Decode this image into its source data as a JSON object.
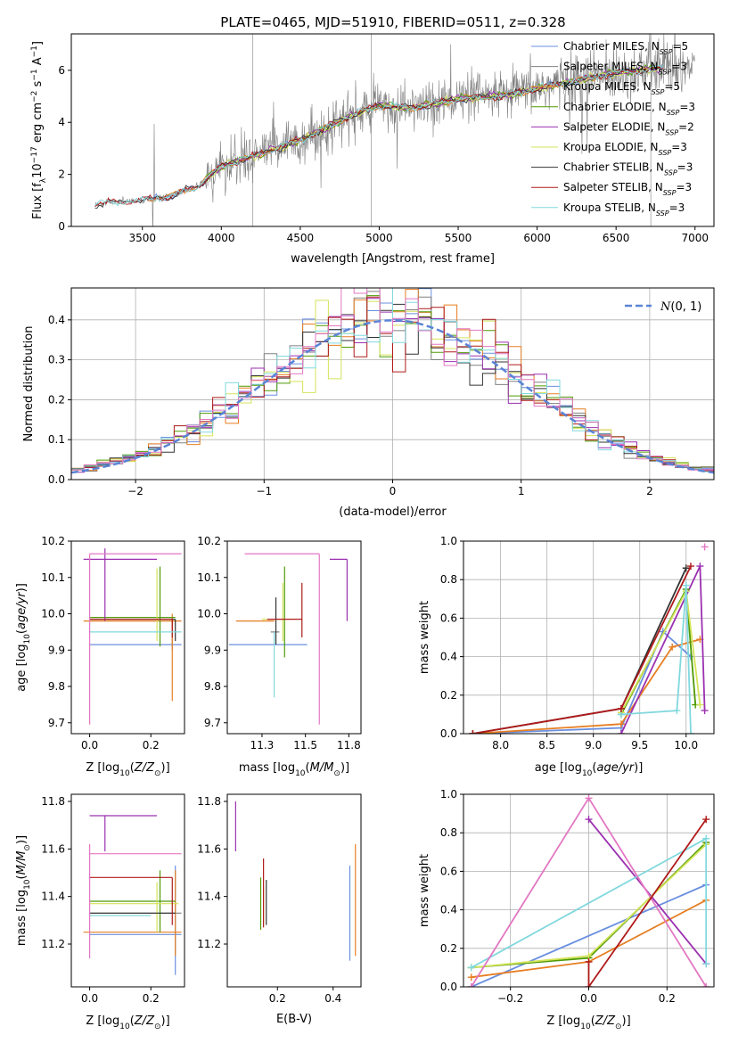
{
  "figure_title": "PLATE=0465, MJD=51910, FIBERID=0511, z=0.328",
  "colors": {
    "Chabrier MILES": "#6a8fe0",
    "Salpeter MILES": "#808080",
    "Kroupa MILES": "#e67e22",
    "Chabrier ELODIE": "#4e9a06",
    "Salpeter ELODIE": "#9b30b0",
    "Kroupa ELODIE": "#d4e35a",
    "Chabrier STELIB": "#333333",
    "Salpeter STELIB": "#b01a1a",
    "Kroupa STELIB": "#80d8de",
    "extra": "#e377c2"
  },
  "chart_data": [
    {
      "id": "spectrum",
      "type": "line",
      "xlabel": "wavelength [Angstrom, rest frame]",
      "ylabel": "Flux [f$_\\lambda$10$^{-17}$ erg cm$^{-2}$ s$^{-1}$ A$^{-1}$]",
      "xlim": [
        3050,
        7120
      ],
      "ylim": [
        0,
        7.4
      ],
      "xticks": [
        3500,
        4000,
        4500,
        5000,
        5500,
        6000,
        6500,
        7000
      ],
      "yticks": [
        0,
        2,
        4,
        6
      ],
      "legend_position": "upper-right",
      "legend": [
        {
          "name": "Chabrier MILES, N_SSP=5",
          "base": "Chabrier MILES, N",
          "sub": "SSP",
          "tail": "=5",
          "color_key": "Chabrier MILES"
        },
        {
          "name": "Salpeter MILES, N_SSP=3",
          "base": "Salpeter MILES, N",
          "sub": "SSP",
          "tail": "=3",
          "color_key": "Salpeter MILES"
        },
        {
          "name": "Kroupa MILES, N_SSP=5",
          "base": "Kroupa MILES, N",
          "sub": "SSP",
          "tail": "=5",
          "color_key": "Kroupa MILES"
        },
        {
          "name": "Chabrier ELODIE, N_SSP=3",
          "base": "Chabrier ELODIE, N",
          "sub": "SSP",
          "tail": "=3",
          "color_key": "Chabrier ELODIE"
        },
        {
          "name": "Salpeter ELODIE, N_SSP=2",
          "base": "Salpeter ELODIE, N",
          "sub": "SSP",
          "tail": "=2",
          "color_key": "Salpeter ELODIE"
        },
        {
          "name": "Kroupa ELODIE, N_SSP=3",
          "base": "Kroupa ELODIE, N",
          "sub": "SSP",
          "tail": "=3",
          "color_key": "Kroupa ELODIE"
        },
        {
          "name": "Chabrier STELIB, N_SSP=3",
          "base": "Chabrier STELIB, N",
          "sub": "SSP",
          "tail": "=3",
          "color_key": "Chabrier STELIB"
        },
        {
          "name": "Salpeter STELIB, N_SSP=3",
          "base": "Salpeter STELIB, N",
          "sub": "SSP",
          "tail": "=3",
          "color_key": "Salpeter STELIB"
        },
        {
          "name": "Kroupa STELIB, N_SSP=3",
          "base": "Kroupa STELIB, N",
          "sub": "SSP",
          "tail": "=3",
          "color_key": "Kroupa STELIB"
        }
      ],
      "continuum_points": [
        [
          3200,
          0.82
        ],
        [
          3300,
          0.95
        ],
        [
          3500,
          1.0
        ],
        [
          3700,
          1.2
        ],
        [
          3850,
          1.55
        ],
        [
          4000,
          2.3
        ],
        [
          4200,
          2.7
        ],
        [
          4400,
          3.1
        ],
        [
          4600,
          3.6
        ],
        [
          4800,
          4.2
        ],
        [
          5000,
          4.65
        ],
        [
          5200,
          4.55
        ],
        [
          5500,
          4.9
        ],
        [
          5800,
          5.05
        ],
        [
          6000,
          5.3
        ],
        [
          6200,
          5.55
        ],
        [
          6500,
          5.9
        ],
        [
          6800,
          6.1
        ],
        [
          7000,
          6.2
        ]
      ]
    },
    {
      "id": "residuals",
      "type": "histogram",
      "xlabel": "(data-model)/error",
      "ylabel": "Normed distribution",
      "xlim": [
        -2.5,
        2.5
      ],
      "ylim": [
        0,
        0.48
      ],
      "xticks": [
        -2,
        -1,
        0,
        1,
        2
      ],
      "yticks": [
        0.0,
        0.1,
        0.2,
        0.3,
        0.4
      ],
      "grid": true,
      "legend_position": "upper-right",
      "legend_label": "N(0,1)",
      "bin_width": 0.1,
      "bins_x_start": -2.5,
      "bins_count": 50
    },
    {
      "id": "age_vs_Z",
      "type": "errorbar",
      "xlabel": "Z [log10(Z/Z⊙)]",
      "ylabel": "age [log10(age/yr)]",
      "xlim": [
        -0.06,
        0.31
      ],
      "ylim": [
        9.67,
        10.2
      ],
      "xticks": [
        0.0,
        0.2
      ],
      "yticks": [
        9.7,
        9.8,
        9.9,
        10.0,
        10.1,
        10.2
      ],
      "points": [
        {
          "key": "Chabrier MILES",
          "x": 0.2,
          "xerr_lo": 0.2,
          "xerr_hi": 0.1,
          "y": 9.915,
          "yerr_lo": 0.0,
          "yerr_hi": 0.0
        },
        {
          "key": "Salpeter MILES",
          "x": 0.27,
          "xerr_lo": 0.27,
          "xerr_hi": 0.0,
          "y": 9.99,
          "yerr_lo": 0.09,
          "yerr_hi": 0.0
        },
        {
          "key": "Kroupa MILES",
          "x": 0.27,
          "xerr_lo": 0.29,
          "xerr_hi": 0.03,
          "y": 9.98,
          "yerr_lo": 0.22,
          "yerr_hi": 0.02
        },
        {
          "key": "Chabrier ELODIE",
          "x": 0.23,
          "xerr_lo": 0.23,
          "xerr_hi": 0.05,
          "y": 9.99,
          "yerr_lo": 0.08,
          "yerr_hi": 0.14
        },
        {
          "key": "Salpeter ELODIE",
          "x": 0.05,
          "xerr_lo": 0.07,
          "xerr_hi": 0.17,
          "y": 10.15,
          "yerr_lo": 0.17,
          "yerr_hi": 0.03
        },
        {
          "key": "Kroupa ELODIE",
          "x": 0.22,
          "xerr_lo": 0.22,
          "xerr_hi": 0.06,
          "y": 9.985,
          "yerr_lo": 0.06,
          "yerr_hi": 0.14
        },
        {
          "key": "Chabrier STELIB",
          "x": 0.28,
          "xerr_lo": 0.28,
          "xerr_hi": 0.0,
          "y": 9.985,
          "yerr_lo": 0.06,
          "yerr_hi": 0.0
        },
        {
          "key": "Salpeter STELIB",
          "x": 0.27,
          "xerr_lo": 0.27,
          "xerr_hi": 0.0,
          "y": 9.985,
          "yerr_lo": 0.05,
          "yerr_hi": 0.0
        },
        {
          "key": "Kroupa STELIB",
          "x": 0.13,
          "xerr_lo": 0.13,
          "xerr_hi": 0.17,
          "y": 9.95,
          "yerr_lo": 0.0,
          "yerr_hi": 0.0
        },
        {
          "key": "extra",
          "x": 0.0,
          "xerr_lo": 0.0,
          "xerr_hi": 0.3,
          "y": 10.165,
          "yerr_lo": 0.47,
          "yerr_hi": 0.0
        }
      ]
    },
    {
      "id": "age_vs_mass",
      "type": "errorbar",
      "xlabel": "mass [log10(M/M⊙)]",
      "xlim": [
        11.05,
        11.82
      ],
      "ylim": [
        9.67,
        10.2
      ],
      "xticks": [
        11.25,
        11.5,
        11.75
      ],
      "yticks": [
        9.7,
        9.8,
        9.9,
        10.0,
        10.1,
        10.2
      ],
      "points": [
        {
          "key": "Chabrier MILES",
          "x": 11.24,
          "xerr_lo": 0.18,
          "xerr_hi": 0.27,
          "y": 9.915,
          "yerr_lo": 0.0,
          "yerr_hi": 0.0
        },
        {
          "key": "Salpeter MILES",
          "x": 11.33,
          "xerr_lo": 0.03,
          "xerr_hi": 0.02,
          "y": 9.95,
          "yerr_lo": 0.0,
          "yerr_hi": 0.0
        },
        {
          "key": "Kroupa MILES",
          "x": 11.25,
          "xerr_lo": 0.15,
          "xerr_hi": 0.07,
          "y": 9.98,
          "yerr_lo": 0.0,
          "yerr_hi": 0.0
        },
        {
          "key": "Chabrier ELODIE",
          "x": 11.38,
          "xerr_lo": 0.0,
          "xerr_hi": 0.0,
          "y": 9.99,
          "yerr_lo": 0.11,
          "yerr_hi": 0.14
        },
        {
          "key": "Salpeter ELODIE",
          "x": 11.74,
          "xerr_lo": 0.1,
          "xerr_hi": 0.0,
          "y": 10.15,
          "yerr_lo": 0.17,
          "yerr_hi": 0.0
        },
        {
          "key": "Kroupa ELODIE",
          "x": 11.37,
          "xerr_lo": 0.12,
          "xerr_hi": 0.04,
          "y": 9.985,
          "yerr_lo": 0.06,
          "yerr_hi": 0.1
        },
        {
          "key": "Chabrier STELIB",
          "x": 11.33,
          "xerr_lo": 0.0,
          "xerr_hi": 0.0,
          "y": 9.985,
          "yerr_lo": 0.07,
          "yerr_hi": 0.06
        },
        {
          "key": "Salpeter STELIB",
          "x": 11.48,
          "xerr_lo": 0.2,
          "xerr_hi": 0.0,
          "y": 9.985,
          "yerr_lo": 0.05,
          "yerr_hi": 0.1
        },
        {
          "key": "Kroupa STELIB",
          "x": 11.32,
          "xerr_lo": 0.0,
          "xerr_hi": 0.0,
          "y": 9.95,
          "yerr_lo": 0.18,
          "yerr_hi": 0.0
        },
        {
          "key": "extra",
          "x": 11.58,
          "xerr_lo": 0.43,
          "xerr_hi": 0.0,
          "y": 10.165,
          "yerr_lo": 0.47,
          "yerr_hi": 0.0
        }
      ]
    },
    {
      "id": "weight_vs_age",
      "type": "line",
      "xlabel": "age [log10(age/yr)]",
      "ylabel": "mass weight",
      "xlim": [
        7.6,
        10.3
      ],
      "ylim": [
        0.0,
        1.0
      ],
      "xticks": [
        8.0,
        8.5,
        9.0,
        9.5,
        10.0
      ],
      "yticks": [
        0.0,
        0.2,
        0.4,
        0.6,
        0.8,
        1.0
      ],
      "grid": true,
      "series": [
        {
          "key": "Chabrier MILES",
          "x": [
            7.7,
            9.3,
            9.75,
            10.05
          ],
          "y": [
            0.0,
            0.03,
            0.53,
            0.4
          ]
        },
        {
          "key": "Kroupa MILES",
          "x": [
            7.7,
            9.3,
            9.85,
            10.15
          ],
          "y": [
            0.0,
            0.05,
            0.45,
            0.49
          ]
        },
        {
          "key": "Salpeter ELODIE",
          "x": [
            9.3,
            10.15,
            10.2
          ],
          "y": [
            0.0,
            0.87,
            0.12
          ]
        },
        {
          "key": "Chabrier ELODIE",
          "x": [
            9.3,
            10.0,
            10.1
          ],
          "y": [
            0.1,
            0.75,
            0.15
          ]
        },
        {
          "key": "Kroupa ELODIE",
          "x": [
            9.3,
            10.0,
            10.15
          ],
          "y": [
            0.11,
            0.74,
            0.15
          ]
        },
        {
          "key": "Chabrier STELIB",
          "x": [
            7.7,
            9.3,
            10.0
          ],
          "y": [
            0.0,
            0.13,
            0.86
          ]
        },
        {
          "key": "Kroupa STELIB",
          "x": [
            9.3,
            9.9,
            10.0,
            10.05
          ],
          "y": [
            0.1,
            0.12,
            0.77,
            0.0
          ]
        },
        {
          "key": "extra",
          "x": [
            10.2
          ],
          "y": [
            0.97
          ]
        },
        {
          "key": "Salpeter STELIB",
          "x": [
            7.7,
            9.3,
            10.05
          ],
          "y": [
            0.0,
            0.13,
            0.87
          ]
        }
      ]
    },
    {
      "id": "mass_vs_Z",
      "type": "errorbar",
      "xlabel": "Z [log10(Z/Z⊙)]",
      "ylabel": "mass [log10(M/M⊙)]",
      "xlim": [
        -0.06,
        0.31
      ],
      "ylim": [
        11.02,
        11.83
      ],
      "xticks": [
        0.0,
        0.2
      ],
      "yticks": [
        11.2,
        11.4,
        11.6,
        11.8
      ],
      "points": [
        {
          "key": "Chabrier MILES",
          "x": 0.28,
          "xerr_lo": 0.28,
          "xerr_hi": 0.02,
          "y": 11.24,
          "yerr_lo": 0.17,
          "yerr_hi": 0.29
        },
        {
          "key": "Salpeter MILES",
          "x": 0.15,
          "xerr_lo": 0.15,
          "xerr_hi": 0.15,
          "y": 11.33,
          "yerr_lo": 0.0,
          "yerr_hi": 0.0
        },
        {
          "key": "Kroupa MILES",
          "x": 0.28,
          "xerr_lo": 0.3,
          "xerr_hi": 0.02,
          "y": 11.25,
          "yerr_lo": 0.1,
          "yerr_hi": 0.26
        },
        {
          "key": "Chabrier ELODIE",
          "x": 0.23,
          "xerr_lo": 0.23,
          "xerr_hi": 0.05,
          "y": 11.38,
          "yerr_lo": 0.13,
          "yerr_hi": 0.13
        },
        {
          "key": "Salpeter ELODIE",
          "x": 0.05,
          "xerr_lo": 0.05,
          "xerr_hi": 0.17,
          "y": 11.74,
          "yerr_lo": 0.15,
          "yerr_hi": 0.0
        },
        {
          "key": "Kroupa ELODIE",
          "x": 0.22,
          "xerr_lo": 0.22,
          "xerr_hi": 0.07,
          "y": 11.37,
          "yerr_lo": 0.12,
          "yerr_hi": 0.09
        },
        {
          "key": "Chabrier STELIB",
          "x": 0.28,
          "xerr_lo": 0.28,
          "xerr_hi": 0.0,
          "y": 11.33,
          "yerr_lo": 0.0,
          "yerr_hi": 0.0
        },
        {
          "key": "Salpeter STELIB",
          "x": 0.27,
          "xerr_lo": 0.27,
          "xerr_hi": 0.0,
          "y": 11.48,
          "yerr_lo": 0.2,
          "yerr_hi": 0.0
        },
        {
          "key": "Kroupa STELIB",
          "x": 0.2,
          "xerr_lo": 0.2,
          "xerr_hi": 0.0,
          "y": 11.32,
          "yerr_lo": 0.0,
          "yerr_hi": 0.0
        },
        {
          "key": "extra",
          "x": 0.0,
          "xerr_lo": 0.0,
          "xerr_hi": 0.3,
          "y": 11.58,
          "yerr_lo": 0.44,
          "yerr_hi": 0.04
        }
      ]
    },
    {
      "id": "mass_vs_EBV",
      "type": "errorbar",
      "xlabel": "E(B-V)",
      "xlim": [
        0.02,
        0.5
      ],
      "ylim": [
        11.02,
        11.83
      ],
      "xticks": [
        0.2,
        0.4
      ],
      "yticks": [
        11.2,
        11.4,
        11.6,
        11.8
      ],
      "points": [
        {
          "key": "Chabrier MILES",
          "x": 0.46,
          "xerr_lo": 0.0,
          "xerr_hi": 0.0,
          "y": 11.33,
          "yerr_lo": 0.2,
          "yerr_hi": 0.2
        },
        {
          "key": "Kroupa MILES",
          "x": 0.48,
          "xerr_lo": 0.0,
          "xerr_hi": 0.0,
          "y": 11.38,
          "yerr_lo": 0.23,
          "yerr_hi": 0.24
        },
        {
          "key": "Chabrier ELODIE",
          "x": 0.14,
          "xerr_lo": 0.0,
          "xerr_hi": 0.0,
          "y": 11.38,
          "yerr_lo": 0.12,
          "yerr_hi": 0.1
        },
        {
          "key": "Salpeter ELODIE",
          "x": 0.05,
          "xerr_lo": 0.0,
          "xerr_hi": 0.0,
          "y": 11.69,
          "yerr_lo": 0.1,
          "yerr_hi": 0.11
        },
        {
          "key": "Kroupa ELODIE",
          "x": 0.15,
          "xerr_lo": 0.0,
          "xerr_hi": 0.0,
          "y": 11.38,
          "yerr_lo": 0.1,
          "yerr_hi": 0.06
        },
        {
          "key": "Chabrier STELIB",
          "x": 0.16,
          "xerr_lo": 0.0,
          "xerr_hi": 0.0,
          "y": 11.37,
          "yerr_lo": 0.09,
          "yerr_hi": 0.1
        },
        {
          "key": "Salpeter STELIB",
          "x": 0.15,
          "xerr_lo": 0.0,
          "xerr_hi": 0.0,
          "y": 11.41,
          "yerr_lo": 0.14,
          "yerr_hi": 0.15
        }
      ]
    },
    {
      "id": "weight_vs_Z",
      "type": "line",
      "xlabel": "Z [log10(Z/Z⊙)]",
      "ylabel": "mass weight",
      "xlim": [
        -0.32,
        0.32
      ],
      "ylim": [
        0.0,
        1.0
      ],
      "xticks": [
        -0.2,
        0.0,
        0.2
      ],
      "yticks": [
        0.0,
        0.2,
        0.4,
        0.6,
        0.8,
        1.0
      ],
      "grid": true,
      "series": [
        {
          "key": "Chabrier MILES",
          "x": [
            -0.3,
            0.3
          ],
          "y": [
            0.0,
            0.53
          ]
        },
        {
          "key": "Kroupa MILES",
          "x": [
            -0.3,
            0.0,
            0.3
          ],
          "y": [
            0.05,
            0.13,
            0.45
          ]
        },
        {
          "key": "Salpeter ELODIE",
          "x": [
            0.0,
            0.3
          ],
          "y": [
            0.87,
            0.12
          ]
        },
        {
          "key": "Chabrier ELODIE",
          "x": [
            -0.3,
            0.0,
            0.3
          ],
          "y": [
            0.1,
            0.15,
            0.75
          ]
        },
        {
          "key": "Kroupa ELODIE",
          "x": [
            -0.3,
            0.0,
            0.3
          ],
          "y": [
            0.1,
            0.16,
            0.74
          ]
        },
        {
          "key": "Kroupa STELIB",
          "x": [
            -0.3,
            0.3,
            0.3
          ],
          "y": [
            0.1,
            0.77,
            0.12
          ]
        },
        {
          "key": "extra",
          "x": [
            -0.3,
            0.0,
            0.3
          ],
          "y": [
            0.0,
            0.98,
            0.0
          ]
        },
        {
          "key": "Salpeter STELIB",
          "x": [
            0.0,
            0.0,
            0.3
          ],
          "y": [
            0.13,
            0.0,
            0.87
          ]
        }
      ]
    }
  ]
}
